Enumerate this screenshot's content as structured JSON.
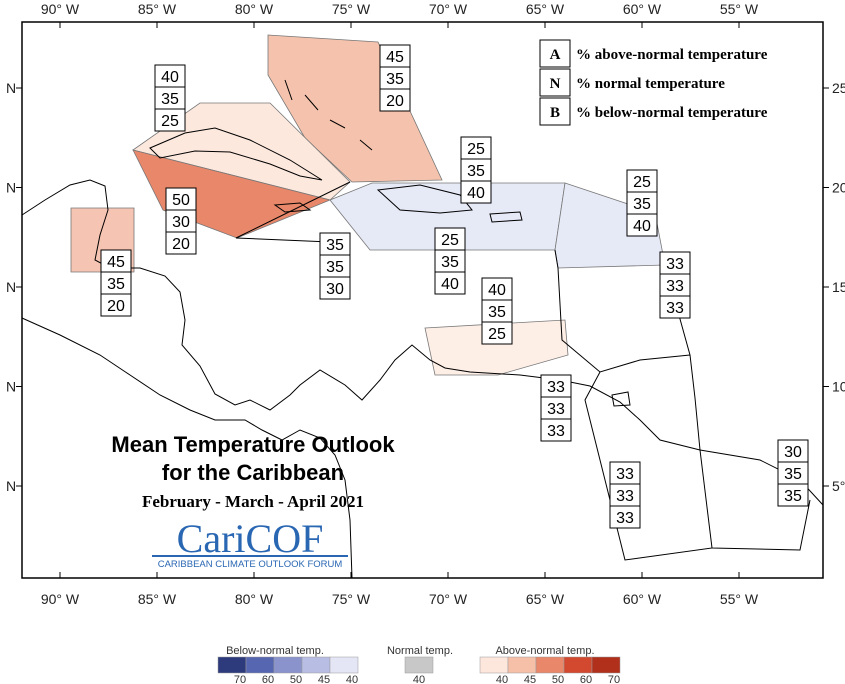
{
  "title": [
    "Mean Temperature Outlook",
    "for the Caribbean"
  ],
  "subtitle": "February - March - April 2021",
  "logo": {
    "name": "CariCOF",
    "caption": "CARIBBEAN CLIMATE OUTLOOK FORUM"
  },
  "axes": {
    "top": [
      "90° W",
      "85° W",
      "80° W",
      "75° W",
      "70° W",
      "65° W",
      "60° W",
      "55° W"
    ],
    "bottom": [
      "90° W",
      "85° W",
      "80° W",
      "75° W",
      "70° W",
      "65° W",
      "60° W",
      "55° W"
    ],
    "left": [
      "N",
      "N",
      "N",
      "N",
      "N"
    ],
    "right": [
      "25",
      "20",
      "15",
      "10",
      "5°"
    ]
  },
  "key": [
    {
      "letter": "A",
      "text": "% above-normal temperature"
    },
    {
      "letter": "N",
      "text": "% normal temperature"
    },
    {
      "letter": "B",
      "text": "% below-normal temperature"
    }
  ],
  "regions": [
    {
      "values": [
        45,
        35,
        20
      ],
      "color": "#f5c3ad"
    },
    {
      "values": [
        40,
        35,
        25
      ],
      "color": "#fde8de"
    },
    {
      "values": [
        50,
        30,
        20
      ],
      "color": "#e8876a"
    },
    {
      "values": [
        45,
        35,
        20
      ],
      "color": "#f6c4b2"
    },
    {
      "values": [
        35,
        35,
        30
      ],
      "color": "#ffffff"
    },
    {
      "values": [
        25,
        35,
        40
      ],
      "color": "#e6e9f6"
    },
    {
      "values": [
        25,
        35,
        40
      ],
      "color": "#e6e9f6"
    },
    {
      "values": [
        25,
        35,
        40
      ],
      "color": "#e6e9f6"
    },
    {
      "values": [
        33,
        33,
        33
      ],
      "color": "#ffffff"
    },
    {
      "values": [
        40,
        35,
        25
      ],
      "color": "#fdeee6"
    },
    {
      "values": [
        33,
        33,
        33
      ],
      "color": "#ffffff"
    },
    {
      "values": [
        33,
        33,
        33
      ],
      "color": "#ffffff"
    },
    {
      "values": [
        30,
        35,
        35
      ],
      "color": "#ffffff"
    }
  ],
  "colorbar": [
    {
      "title": "Below-normal temp.",
      "ticks": [
        70,
        60,
        50,
        45,
        40
      ],
      "colors": [
        "#2d3b7c",
        "#5666b0",
        "#8a93cc",
        "#b8bde3",
        "#e4e6f5"
      ]
    },
    {
      "title": "Normal temp.",
      "ticks": [
        40
      ],
      "colors": [
        "#c8c8c8"
      ]
    },
    {
      "title": "Above-normal temp.",
      "ticks": [
        40,
        45,
        50,
        60,
        70
      ],
      "colors": [
        "#fde6dc",
        "#f6bfa8",
        "#e8876a",
        "#d2492f",
        "#b0301c"
      ]
    }
  ]
}
